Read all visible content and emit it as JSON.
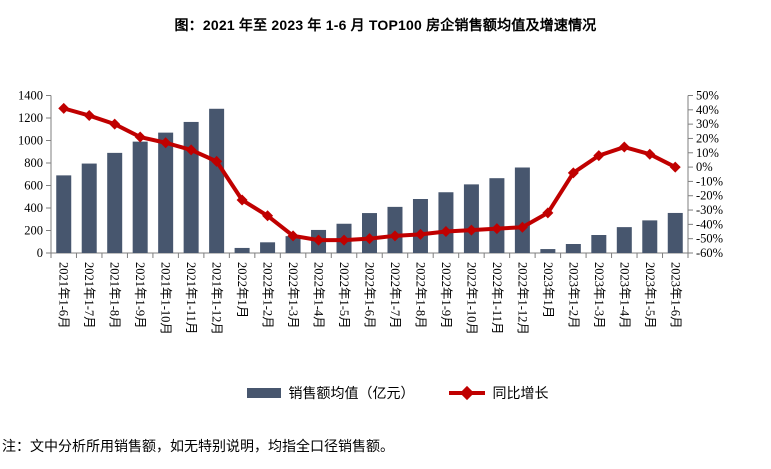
{
  "title": "图：2021 年至 2023 年 1-6 月 TOP100 房企销售额均值及增速情况",
  "footnote": "注：文中分析所用销售额，如无特别说明，均指全口径销售额。",
  "legend": {
    "bar_label": "销售额均值（亿元）",
    "line_label": "同比增长"
  },
  "colors": {
    "bar": "#47566E",
    "line": "#C00000",
    "axis": "#7F7F7F",
    "text": "#000000"
  },
  "chart_data": {
    "type": "bar+line",
    "title": "图：2021 年至 2023 年 1-6 月 TOP100 房企销售额均值及增速情况",
    "grid": false,
    "legend_position": "bottom",
    "categories": [
      "2021年1-6月",
      "2021年1-7月",
      "2021年1-8月",
      "2021年1-9月",
      "2021年1-10月",
      "2021年1-11月",
      "2021年1-12月",
      "2022年1月",
      "2022年1-2月",
      "2022年1-3月",
      "2022年1-4月",
      "2022年1-5月",
      "2022年1-6月",
      "2022年1-7月",
      "2022年1-8月",
      "2022年1-9月",
      "2022年1-10月",
      "2022年1-11月",
      "2022年1-12月",
      "2023年1月",
      "2023年1-2月",
      "2023年1-3月",
      "2023年1-4月",
      "2023年1-5月",
      "2023年1-6月"
    ],
    "series": [
      {
        "name": "销售额均值（亿元）",
        "type": "bar",
        "axis": "left",
        "unit": "亿元",
        "values": [
          690,
          795,
          890,
          990,
          1070,
          1165,
          1282,
          45,
          95,
          150,
          205,
          260,
          355,
          410,
          480,
          540,
          610,
          665,
          760,
          35,
          80,
          160,
          230,
          290,
          356
        ]
      },
      {
        "name": "同比增长",
        "type": "line",
        "axis": "right",
        "unit": "%",
        "values": [
          41,
          36,
          30,
          21,
          17,
          12,
          4,
          -23,
          -34,
          -48,
          -51,
          -51,
          -50,
          -48,
          -47,
          -45,
          -44,
          -43,
          -42,
          -32,
          -4,
          8,
          14,
          9,
          0
        ]
      }
    ],
    "left_axis": {
      "min": 0,
      "max": 1400,
      "tick_values": [
        0,
        200,
        400,
        600,
        800,
        1000,
        1200,
        1400
      ],
      "tick_labels": [
        "0",
        "200",
        "400",
        "600",
        "800",
        "1000",
        "1200",
        "1400"
      ]
    },
    "right_axis": {
      "min": -60,
      "max": 50,
      "tick_values": [
        50,
        40,
        30,
        20,
        10,
        0,
        -10,
        -20,
        -30,
        -40,
        -50,
        -60
      ],
      "tick_labels": [
        "50%",
        "40%",
        "30%",
        "20%",
        "10%",
        "0%",
        "-10%",
        "-20%",
        "-30%",
        "-40%",
        "-50%",
        "-60%"
      ]
    }
  }
}
